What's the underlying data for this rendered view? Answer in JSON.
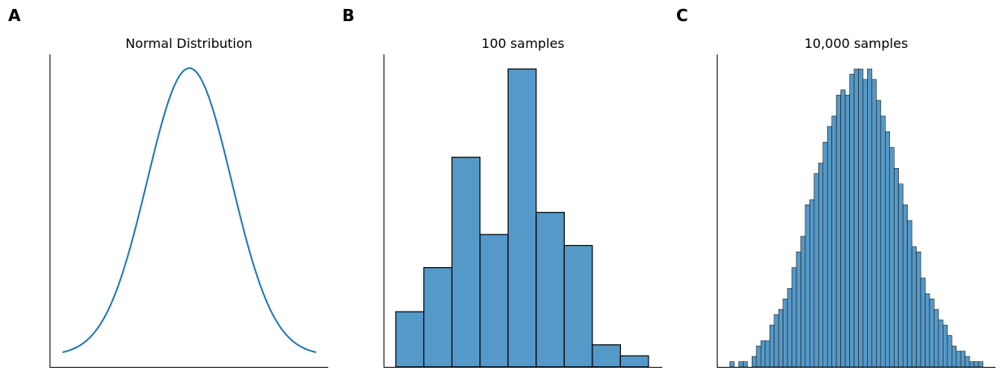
{
  "chart_data": [
    {
      "type": "line",
      "panel_label": "A",
      "title": "Normal Distribution",
      "xlabel": "",
      "ylabel": "",
      "series": [
        {
          "function": "standard normal pdf",
          "x_range": [
            -3,
            3
          ],
          "color": "#1f77b4"
        }
      ],
      "grid": false,
      "axis_ticks": false
    },
    {
      "type": "bar",
      "panel_label": "B",
      "title": "100 samples",
      "xlabel": "",
      "ylabel": "",
      "values": [
        5,
        9,
        19,
        12,
        27,
        14,
        11,
        2,
        1
      ],
      "bar_color": "#5599c8",
      "edge_color": "#000000",
      "grid": false,
      "axis_ticks": false
    },
    {
      "type": "bar",
      "panel_label": "C",
      "title": "10,000 samples",
      "xlabel": "",
      "ylabel": "",
      "values": [
        1,
        0,
        1,
        1,
        0,
        2,
        4,
        5,
        5,
        8,
        10,
        11,
        13,
        15,
        19,
        22,
        25,
        31,
        32,
        37,
        39,
        43,
        46,
        48,
        52,
        53,
        52,
        56,
        57,
        57,
        55,
        57,
        55,
        51,
        48,
        45,
        42,
        38,
        35,
        31,
        28,
        23,
        22,
        17,
        14,
        13,
        11,
        9,
        8,
        6,
        4,
        3,
        3,
        2,
        1,
        1,
        1,
        0
      ],
      "bar_color": "#5599c8",
      "edge_color": "#1a1a1a",
      "grid": false,
      "axis_ticks": false
    }
  ]
}
